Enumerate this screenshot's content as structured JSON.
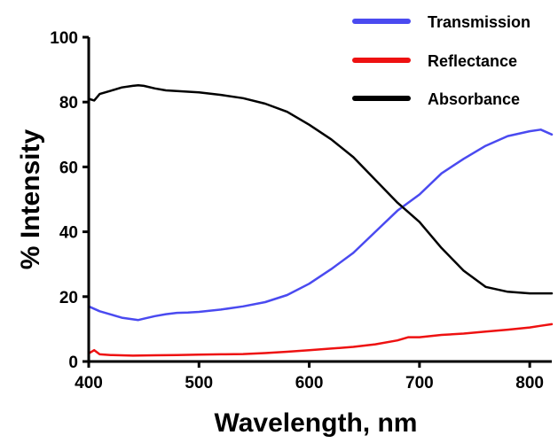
{
  "chart_data": {
    "type": "line",
    "title": "",
    "xlabel": "Wavelength, nm",
    "ylabel": "% Intensity",
    "xlim": [
      400,
      820
    ],
    "ylim": [
      0,
      100
    ],
    "xticks": [
      "400",
      "500",
      "600",
      "700",
      "800"
    ],
    "yticks": [
      "0",
      "20",
      "40",
      "60",
      "80",
      "100"
    ],
    "grid": false,
    "legend_position": "top-right",
    "series": [
      {
        "name": "Transmission",
        "color": "#4a4af0",
        "x": [
          400,
          410,
          420,
          430,
          440,
          445,
          450,
          460,
          470,
          480,
          490,
          500,
          520,
          540,
          560,
          580,
          600,
          620,
          640,
          660,
          680,
          700,
          720,
          740,
          760,
          780,
          800,
          810,
          820
        ],
        "y": [
          17,
          15.5,
          14.5,
          13.5,
          13,
          12.8,
          13.2,
          14,
          14.6,
          15,
          15.1,
          15.3,
          16,
          17,
          18.3,
          20.5,
          24,
          28.5,
          33.5,
          40,
          46.5,
          51.5,
          58,
          62.5,
          66.5,
          69.5,
          71,
          71.5,
          70
        ]
      },
      {
        "name": "Reflectance",
        "color": "#ee1111",
        "x": [
          400,
          405,
          410,
          420,
          440,
          460,
          480,
          500,
          520,
          540,
          560,
          580,
          600,
          620,
          640,
          660,
          680,
          690,
          700,
          720,
          740,
          760,
          780,
          800,
          810,
          820
        ],
        "y": [
          2.5,
          3.5,
          2.2,
          2,
          1.8,
          1.9,
          2,
          2.1,
          2.2,
          2.3,
          2.6,
          3,
          3.5,
          4,
          4.5,
          5.3,
          6.5,
          7.5,
          7.5,
          8.2,
          8.6,
          9.2,
          9.8,
          10.5,
          11,
          11.5
        ]
      },
      {
        "name": "Absorbance",
        "color": "#000000",
        "x": [
          400,
          405,
          410,
          420,
          430,
          440,
          445,
          450,
          460,
          470,
          480,
          500,
          520,
          540,
          560,
          580,
          600,
          620,
          640,
          660,
          680,
          690,
          700,
          720,
          740,
          760,
          780,
          800,
          810,
          820
        ],
        "y": [
          81,
          80.5,
          82.5,
          83.5,
          84.5,
          85,
          85.2,
          85,
          84.2,
          83.6,
          83.4,
          83,
          82.2,
          81.2,
          79.5,
          77,
          73,
          68.5,
          63,
          56,
          49,
          46,
          43,
          35,
          28,
          23,
          21.5,
          21,
          21,
          21
        ]
      }
    ]
  }
}
